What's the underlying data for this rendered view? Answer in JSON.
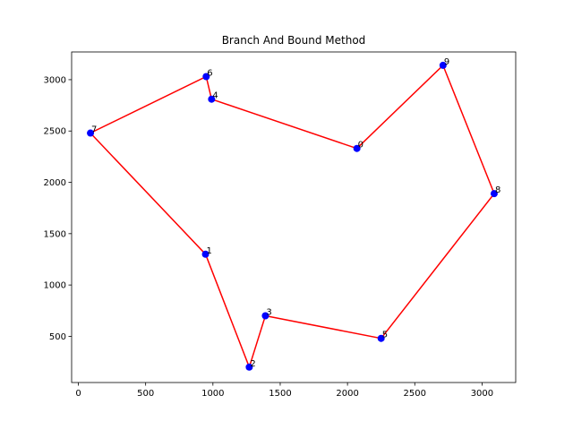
{
  "chart_data": {
    "type": "scatter",
    "title": "Branch And Bound Method",
    "xlabel": "",
    "ylabel": "",
    "xlim": [
      -50,
      3250
    ],
    "ylim": [
      50,
      3270
    ],
    "xticks": [
      0,
      500,
      1000,
      1500,
      2000,
      2500,
      3000
    ],
    "yticks": [
      500,
      1000,
      1500,
      2000,
      2500,
      3000
    ],
    "grid": false,
    "points": [
      {
        "label": "0",
        "x": 2070,
        "y": 2330
      },
      {
        "label": "1",
        "x": 945,
        "y": 1300
      },
      {
        "label": "2",
        "x": 1270,
        "y": 200
      },
      {
        "label": "3",
        "x": 1390,
        "y": 700
      },
      {
        "label": "4",
        "x": 990,
        "y": 2810
      },
      {
        "label": "5",
        "x": 2250,
        "y": 480
      },
      {
        "label": "6",
        "x": 950,
        "y": 3030
      },
      {
        "label": "7",
        "x": 90,
        "y": 2480
      },
      {
        "label": "8",
        "x": 3090,
        "y": 1890
      },
      {
        "label": "9",
        "x": 2710,
        "y": 3140
      }
    ],
    "tour": [
      "0",
      "4",
      "6",
      "7",
      "1",
      "2",
      "3",
      "5",
      "8",
      "9",
      "0"
    ],
    "colors": {
      "points": "#0000ff",
      "path": "#ff0000",
      "axes": "#000000"
    }
  }
}
